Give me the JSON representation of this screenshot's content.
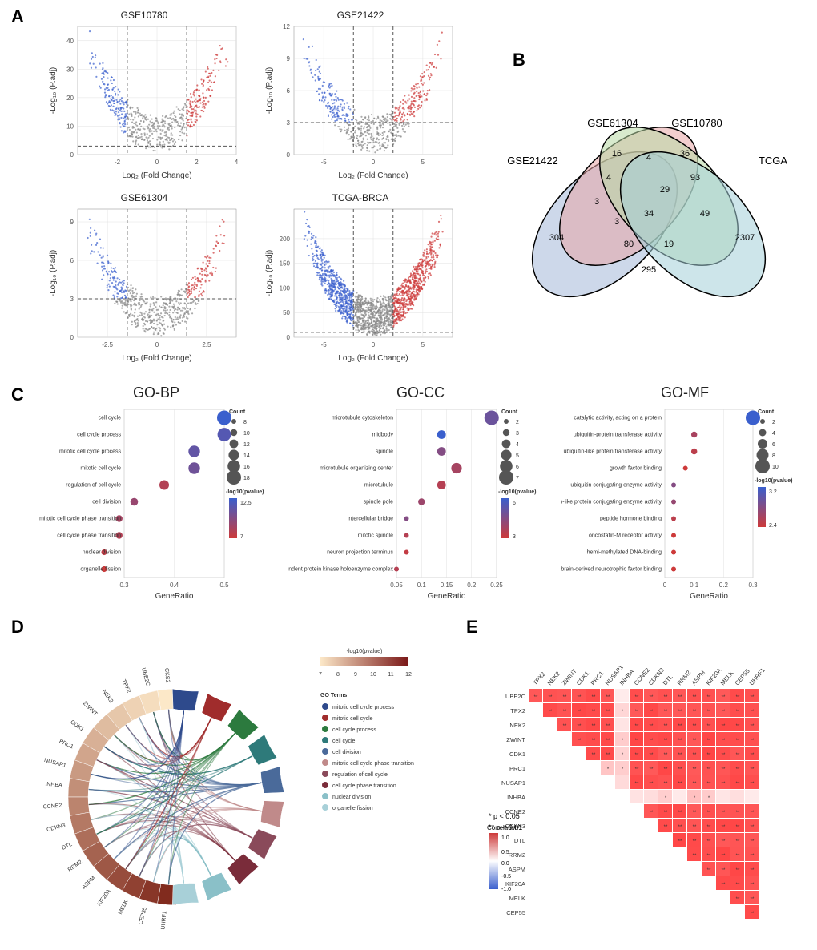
{
  "panelLabels": {
    "A": "A",
    "B": "B",
    "C": "C",
    "D": "D",
    "E": "E"
  },
  "volcano": {
    "xlabel": "Log₂ (Fold Change)",
    "ylabel": "-Log₁₀ (P.adj)",
    "colors": {
      "down": "#3a5fcd",
      "up": "#cd3a3a",
      "ns": "#888888",
      "grid": "#e0e0e0",
      "bg": "#ffffff"
    },
    "plots": [
      {
        "title": "GSE10780",
        "xlim": [
          -4,
          4
        ],
        "ylim": [
          0,
          45
        ],
        "xthresh": [
          -1.5,
          1.5
        ],
        "ythresh": 3,
        "xticks": [
          -2,
          0,
          2,
          4
        ],
        "yticks": [
          0,
          10,
          20,
          30,
          40
        ]
      },
      {
        "title": "GSE21422",
        "xlim": [
          -8,
          8
        ],
        "ylim": [
          0,
          12
        ],
        "xthresh": [
          -2,
          2
        ],
        "ythresh": 3,
        "xticks": [
          -5,
          0,
          5
        ],
        "yticks": [
          0,
          3,
          6,
          9,
          12
        ]
      },
      {
        "title": "GSE61304",
        "xlim": [
          -4,
          4
        ],
        "ylim": [
          0,
          10
        ],
        "xthresh": [
          -1.5,
          1.5
        ],
        "ythresh": 3,
        "xticks": [
          -2.5,
          0,
          2.5
        ],
        "yticks": [
          0,
          3,
          6,
          9
        ]
      },
      {
        "title": "TCGA-BRCA",
        "xlim": [
          -8,
          8
        ],
        "ylim": [
          0,
          260
        ],
        "xthresh": [
          -2,
          2
        ],
        "ythresh": 10,
        "xticks": [
          -5,
          0,
          5
        ],
        "yticks": [
          0,
          50,
          100,
          150,
          200
        ]
      }
    ]
  },
  "venn": {
    "sets": [
      "GSE21422",
      "GSE61304",
      "GSE10780",
      "TCGA"
    ],
    "colors": [
      "#a4b8d8",
      "#e8a6a6",
      "#b8d8a4",
      "#a4d0d8"
    ],
    "counts": {
      "only21422": "304",
      "only61304": "16",
      "only10780": "36",
      "onlyTCGA": "2307",
      "a": "4",
      "b": "4",
      "c": "93",
      "d": "3",
      "e": "29",
      "f": "49",
      "g": "3",
      "h": "80",
      "i": "34",
      "j": "19",
      "k": "295"
    },
    "stroke": "#000000"
  },
  "go": {
    "titles": {
      "bp": "GO-BP",
      "cc": "GO-CC",
      "mf": "GO-MF"
    },
    "xlabel": "GeneRatio",
    "legends": {
      "count": "Count",
      "pval": "-log10(pvalue)"
    },
    "countSizes": {
      "bp": [
        8,
        10,
        12,
        14,
        16,
        18
      ],
      "cc": [
        2,
        3,
        4,
        5,
        6,
        7
      ],
      "mf": [
        2,
        4,
        6,
        8,
        10
      ]
    },
    "colorScale": {
      "low": "#cd3a3a",
      "high": "#3a5fcd"
    },
    "bp": {
      "range": {
        "bp": [
          7,
          12.5
        ],
        "cc": [
          3,
          6
        ],
        "mf": [
          2.4,
          3.2
        ]
      },
      "xticks": [
        0.3,
        0.4,
        0.5
      ],
      "terms": [
        {
          "name": "cell cycle",
          "x": 0.53,
          "c": 18,
          "p": 12.5
        },
        {
          "name": "cell cycle process",
          "x": 0.5,
          "c": 17,
          "p": 11.5
        },
        {
          "name": "mitotic cell cycle process",
          "x": 0.44,
          "c": 15,
          "p": 11.0
        },
        {
          "name": "mitotic cell cycle",
          "x": 0.44,
          "c": 15,
          "p": 10.5
        },
        {
          "name": "regulation of cell cycle",
          "x": 0.38,
          "c": 13,
          "p": 8.0
        },
        {
          "name": "cell division",
          "x": 0.32,
          "c": 11,
          "p": 9.0
        },
        {
          "name": "mitotic cell cycle phase transition",
          "x": 0.29,
          "c": 10,
          "p": 8.5
        },
        {
          "name": "cell cycle phase transition",
          "x": 0.29,
          "c": 10,
          "p": 8.0
        },
        {
          "name": "nuclear division",
          "x": 0.26,
          "c": 9,
          "p": 7.5
        },
        {
          "name": "organelle fission",
          "x": 0.26,
          "c": 9,
          "p": 7.0
        }
      ]
    },
    "cc": {
      "xticks": [
        0.05,
        0.1,
        0.15,
        0.2,
        0.25
      ],
      "terms": [
        {
          "name": "microtubule cytoskeleton",
          "x": 0.24,
          "c": 7,
          "p": 5.0
        },
        {
          "name": "midbody",
          "x": 0.14,
          "c": 4,
          "p": 6.0
        },
        {
          "name": "spindle",
          "x": 0.14,
          "c": 4,
          "p": 4.5
        },
        {
          "name": "microtubule organizing center",
          "x": 0.17,
          "c": 5,
          "p": 3.8
        },
        {
          "name": "microtubule",
          "x": 0.14,
          "c": 4,
          "p": 3.5
        },
        {
          "name": "spindle pole",
          "x": 0.1,
          "c": 3,
          "p": 4.0
        },
        {
          "name": "intercellular bridge",
          "x": 0.07,
          "c": 2,
          "p": 4.5
        },
        {
          "name": "mitotic spindle",
          "x": 0.07,
          "c": 2,
          "p": 3.5
        },
        {
          "name": "neuron projection terminus",
          "x": 0.07,
          "c": 2,
          "p": 3.2
        },
        {
          "name": "cyclin-dependent protein kinase holoenzyme complex",
          "x": 0.05,
          "c": 2,
          "p": 3.5
        }
      ]
    },
    "mf": {
      "xticks": [
        0,
        0.1,
        0.2,
        0.3
      ],
      "terms": [
        {
          "name": "catalytic activity, acting on a protein",
          "x": 0.32,
          "c": 10,
          "p": 3.2
        },
        {
          "name": "ubiquitin-protein transferase activity",
          "x": 0.1,
          "c": 3,
          "p": 2.6
        },
        {
          "name": "ubiquitin-like protein transferase activity",
          "x": 0.1,
          "c": 3,
          "p": 2.5
        },
        {
          "name": "growth factor binding",
          "x": 0.07,
          "c": 2,
          "p": 2.4
        },
        {
          "name": "ubiquitin conjugating enzyme activity",
          "x": 0.03,
          "c": 2,
          "p": 2.8
        },
        {
          "name": "ubiquitin-like protein conjugating enzyme activity",
          "x": 0.03,
          "c": 2,
          "p": 2.7
        },
        {
          "name": "peptide hormone binding",
          "x": 0.03,
          "c": 2,
          "p": 2.5
        },
        {
          "name": "oncostatin-M receptor activity",
          "x": 0.03,
          "c": 2,
          "p": 2.4
        },
        {
          "name": "hemi-methylated DNA-binding",
          "x": 0.03,
          "c": 2,
          "p": 2.4
        },
        {
          "name": "brain-derived neurotrophic factor binding",
          "x": 0.03,
          "c": 2,
          "p": 2.4
        }
      ]
    }
  },
  "chord": {
    "genes": [
      "CKS2",
      "UBE2C",
      "TPX2",
      "NEK2",
      "ZWINT",
      "CDK1",
      "PRC1",
      "NUSAP1",
      "INHBA",
      "CCNE2",
      "CDKN3",
      "DTL",
      "RRM2",
      "ASPM",
      "KIF20A",
      "MELK",
      "CEP55",
      "UHRF1"
    ],
    "goTerms": [
      {
        "name": "mitotic cell cycle process",
        "color": "#2e4a8c"
      },
      {
        "name": "mitotic cell cycle",
        "color": "#a02c2c"
      },
      {
        "name": "cell cycle process",
        "color": "#2c7a3e"
      },
      {
        "name": "cell cycle",
        "color": "#2e7a7a"
      },
      {
        "name": "cell division",
        "color": "#4a6a9a"
      },
      {
        "name": "mitotic cell cycle phase transition",
        "color": "#c08a8a"
      },
      {
        "name": "regulation of cell cycle",
        "color": "#8a4a5a"
      },
      {
        "name": "cell cycle phase transition",
        "color": "#7a2c3a"
      },
      {
        "name": "nuclear division",
        "color": "#8ac0c8"
      },
      {
        "name": "organelle fission",
        "color": "#a8d0d8"
      }
    ],
    "pvalScale": {
      "label": "-log10(pvalue)",
      "low": "#fce8c8",
      "high": "#7a1818",
      "range": [
        7,
        12
      ]
    },
    "legendTitle": "GO Terms"
  },
  "heatmap": {
    "rows": [
      "UBE2C",
      "TPX2",
      "NEK2",
      "ZWINT",
      "CDK1",
      "PRC1",
      "NUSAP1",
      "INHBA",
      "CCNE2",
      "CDKN3",
      "DTL",
      "RRM2",
      "ASPM",
      "KIF20A",
      "MELK",
      "CEP55"
    ],
    "cols": [
      "TPX2",
      "NEK2",
      "ZWINT",
      "CDK1",
      "PRC1",
      "NUSAP1",
      "INHBA",
      "CCNE2",
      "CDKN3",
      "DTL",
      "RRM2",
      "ASPM",
      "KIF20A",
      "MELK",
      "CEP55",
      "UHRF1"
    ],
    "colorScale": {
      "low": "#3a5fcd",
      "mid": "#ffffff",
      "high": "#cd3a3a",
      "range": [
        -1,
        1
      ],
      "label": "Correlation"
    },
    "sigNote": {
      "one": "* p < 0.05",
      "two": "** p < 0.01"
    },
    "special": {
      "INHBA": 0.15,
      "PRC1_NUSAP1": 0.3
    }
  }
}
